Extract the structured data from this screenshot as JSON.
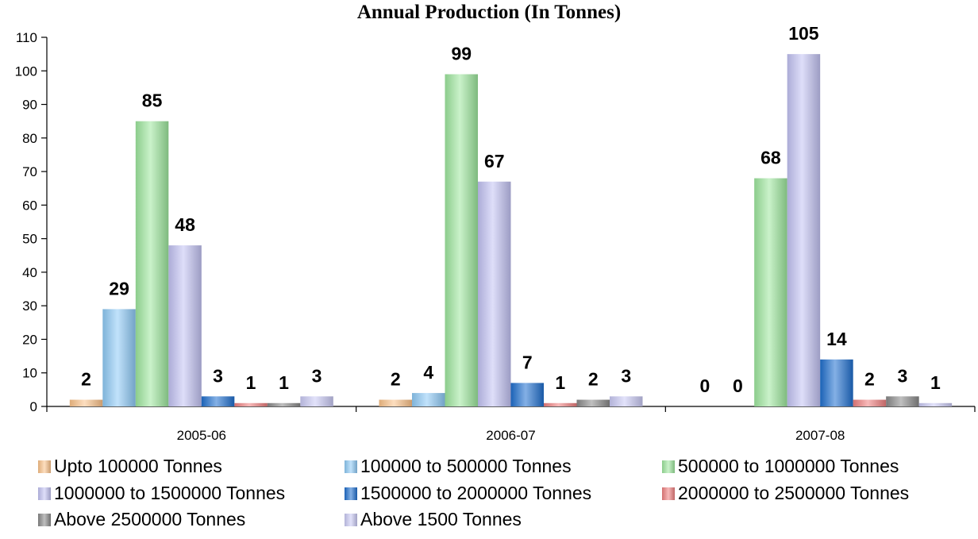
{
  "chart_data": {
    "type": "bar",
    "title": "Annual Production (In Tonnes)",
    "xlabel": "",
    "ylabel": "",
    "ylim": [
      0,
      110
    ],
    "yticks": [
      0,
      10,
      20,
      30,
      40,
      50,
      60,
      70,
      80,
      90,
      100,
      110
    ],
    "categories": [
      "2005-06",
      "2006-07",
      "2007-08"
    ],
    "legend_position": "bottom",
    "grid": false,
    "series": [
      {
        "name": "Upto 100000 Tonnes",
        "color": "#fcc38a",
        "values": [
          2,
          2,
          0
        ]
      },
      {
        "name": "100000 to 500000 Tonnes",
        "color": "#8fcbf7",
        "values": [
          29,
          4,
          0
        ]
      },
      {
        "name": "500000 to 1000000 Tonnes",
        "color": "#9ee89e",
        "values": [
          85,
          99,
          68
        ]
      },
      {
        "name": "1000000 to 1500000 Tonnes",
        "color": "#c3c3f4",
        "values": [
          48,
          67,
          105
        ]
      },
      {
        "name": "1500000 to 2000000 Tonnes",
        "color": "#1f6fcf",
        "values": [
          3,
          7,
          14
        ]
      },
      {
        "name": "2000000 to 2500000 Tonnes",
        "color": "#f07f7f",
        "values": [
          1,
          1,
          2
        ]
      },
      {
        "name": "Above 2500000 Tonnes",
        "color": "#8a8a8a",
        "values": [
          1,
          2,
          3
        ]
      },
      {
        "name": "Above 1500 Tonnes",
        "color": "#cbcbf5",
        "values": [
          3,
          3,
          1
        ]
      }
    ]
  }
}
